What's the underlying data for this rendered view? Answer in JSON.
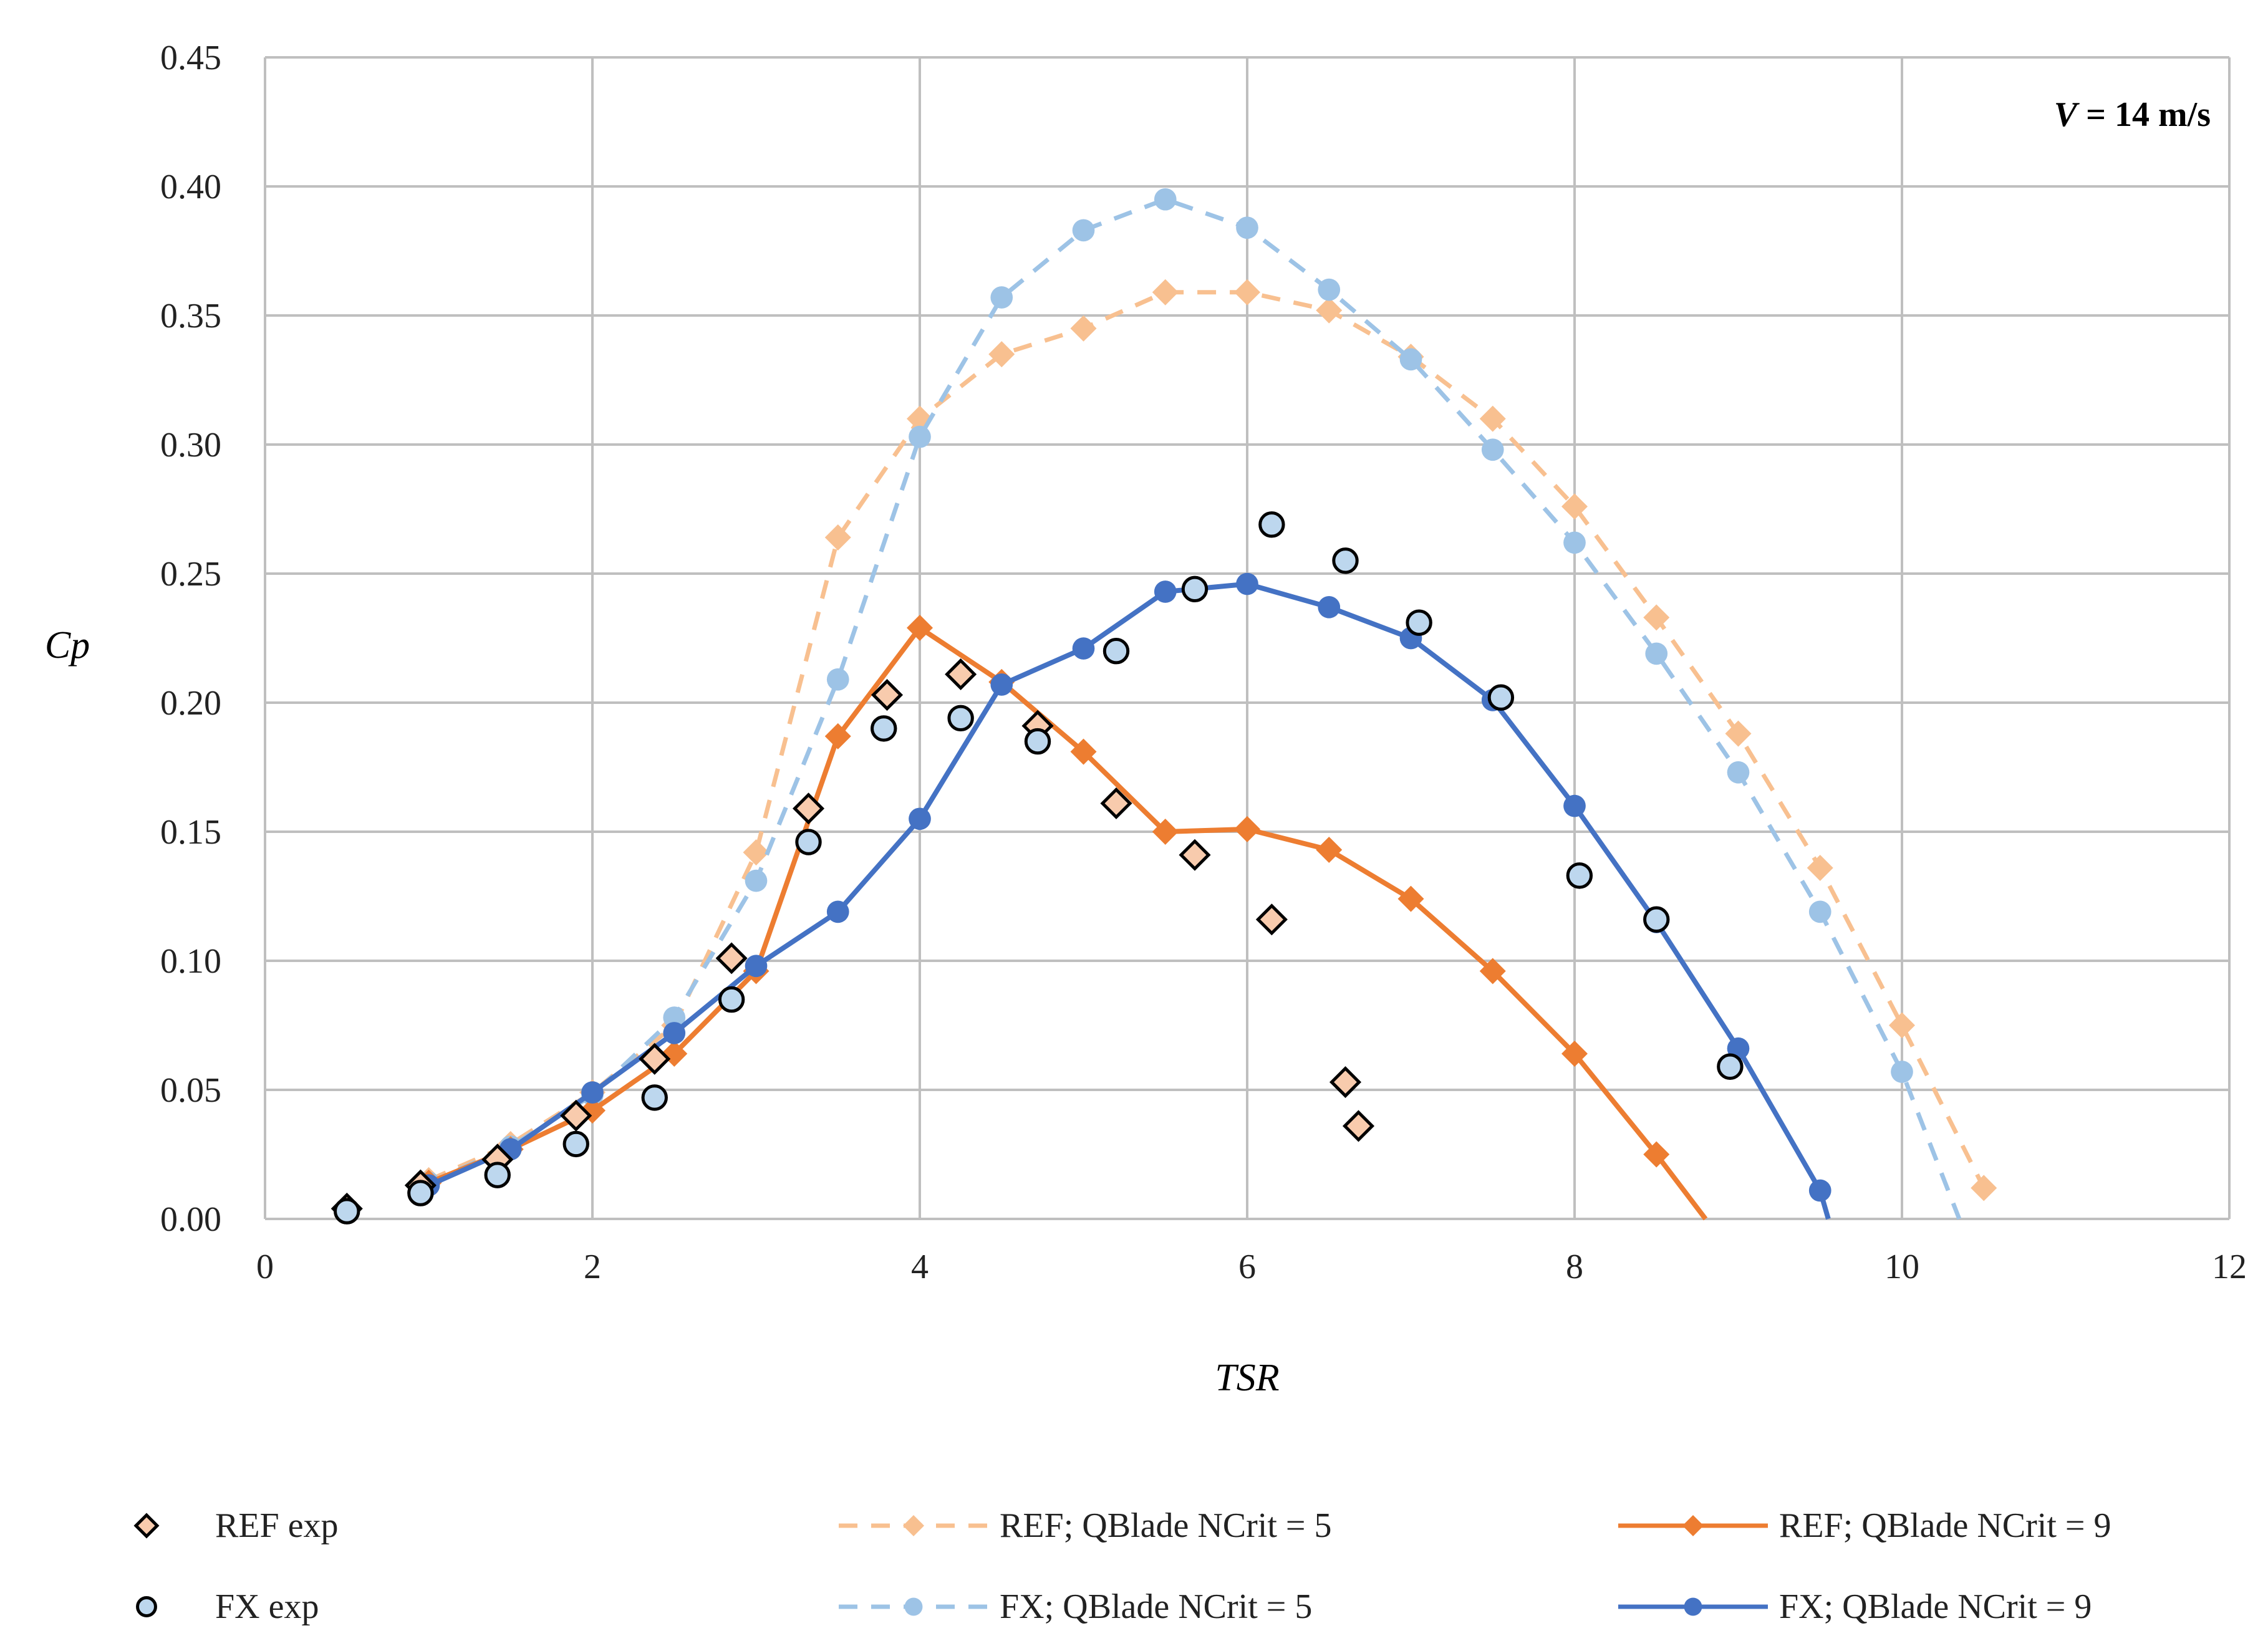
{
  "chart_data": {
    "type": "line",
    "annotation": "V = 14 m/s",
    "xlabel": "TSR",
    "ylabel": "Cp",
    "xlim": [
      0,
      12
    ],
    "ylim": [
      0,
      0.45
    ],
    "x_ticks": [
      0,
      2,
      4,
      6,
      8,
      10,
      12
    ],
    "y_ticks": [
      0,
      0.05,
      0.1,
      0.15,
      0.2,
      0.25,
      0.3,
      0.35,
      0.4,
      0.45
    ],
    "x_tick_labels": [
      "0",
      "2",
      "4",
      "6",
      "8",
      "10",
      "12"
    ],
    "y_tick_labels": [
      "0.00",
      "0.05",
      "0.10",
      "0.15",
      "0.20",
      "0.25",
      "0.30",
      "0.35",
      "0.40",
      "0.45"
    ],
    "grid": true,
    "legend_position": "bottom",
    "series": [
      {
        "id": "ref-exp",
        "name": "REF exp",
        "style": "marker",
        "marker": "diamond",
        "color": "#f8cbad",
        "points": [
          [
            0.5,
            0.004
          ],
          [
            0.95,
            0.013
          ],
          [
            1.42,
            0.023
          ],
          [
            1.9,
            0.04
          ],
          [
            2.38,
            0.062
          ],
          [
            2.85,
            0.101
          ],
          [
            3.32,
            0.159
          ],
          [
            3.8,
            0.203
          ],
          [
            4.25,
            0.211
          ],
          [
            4.72,
            0.191
          ],
          [
            5.2,
            0.161
          ],
          [
            5.68,
            0.141
          ],
          [
            6.15,
            0.116
          ],
          [
            6.6,
            0.053
          ],
          [
            6.68,
            0.036
          ]
        ]
      },
      {
        "id": "fx-exp",
        "name": "FX exp",
        "style": "marker",
        "marker": "circle",
        "color": "#bdd7ee",
        "points": [
          [
            0.5,
            0.003
          ],
          [
            0.95,
            0.01
          ],
          [
            1.42,
            0.017
          ],
          [
            1.9,
            0.029
          ],
          [
            2.38,
            0.047
          ],
          [
            2.85,
            0.085
          ],
          [
            3.32,
            0.146
          ],
          [
            3.78,
            0.19
          ],
          [
            4.25,
            0.194
          ],
          [
            4.72,
            0.185
          ],
          [
            5.2,
            0.22
          ],
          [
            5.68,
            0.244
          ],
          [
            6.15,
            0.269
          ],
          [
            6.6,
            0.255
          ],
          [
            7.05,
            0.231
          ],
          [
            7.55,
            0.202
          ],
          [
            8.03,
            0.133
          ],
          [
            8.5,
            0.116
          ],
          [
            8.95,
            0.059
          ]
        ]
      },
      {
        "id": "ref-nc5",
        "name": "REF; QBlade NCrit = 5",
        "style": "dashed",
        "marker": "diamond",
        "color": "#f8c090",
        "points": [
          [
            1,
            0.015
          ],
          [
            1.5,
            0.029
          ],
          [
            2,
            0.049
          ],
          [
            2.5,
            0.075
          ],
          [
            3,
            0.142
          ],
          [
            3.5,
            0.264
          ],
          [
            4,
            0.31
          ],
          [
            4.5,
            0.335
          ],
          [
            5,
            0.345
          ],
          [
            5.5,
            0.359
          ],
          [
            6,
            0.359
          ],
          [
            6.5,
            0.352
          ],
          [
            7,
            0.334
          ],
          [
            7.5,
            0.31
          ],
          [
            8,
            0.276
          ],
          [
            8.5,
            0.233
          ],
          [
            9,
            0.188
          ],
          [
            9.5,
            0.136
          ],
          [
            10,
            0.075
          ],
          [
            10.5,
            0.012
          ]
        ]
      },
      {
        "id": "fx-nc5",
        "name": "FX; QBlade NCrit = 5",
        "style": "dashed",
        "marker": "circle",
        "color": "#9dc3e6",
        "points": [
          [
            1,
            0.014
          ],
          [
            1.5,
            0.028
          ],
          [
            2,
            0.048
          ],
          [
            2.5,
            0.078
          ],
          [
            3,
            0.131
          ],
          [
            3.5,
            0.209
          ],
          [
            4,
            0.303
          ],
          [
            4.5,
            0.357
          ],
          [
            5,
            0.383
          ],
          [
            5.5,
            0.395
          ],
          [
            6,
            0.384
          ],
          [
            6.5,
            0.36
          ],
          [
            7,
            0.333
          ],
          [
            7.5,
            0.298
          ],
          [
            8,
            0.262
          ],
          [
            8.5,
            0.219
          ],
          [
            9,
            0.173
          ],
          [
            9.5,
            0.119
          ],
          [
            10,
            0.057
          ],
          [
            10.35,
            0
          ]
        ]
      },
      {
        "id": "ref-nc9",
        "name": "REF; QBlade NCrit = 9",
        "style": "solid",
        "marker": "diamond",
        "color": "#ed7d31",
        "points": [
          [
            1,
            0.014
          ],
          [
            1.5,
            0.027
          ],
          [
            2,
            0.042
          ],
          [
            2.5,
            0.064
          ],
          [
            3,
            0.096
          ],
          [
            3.5,
            0.187
          ],
          [
            4,
            0.229
          ],
          [
            4.5,
            0.208
          ],
          [
            5,
            0.181
          ],
          [
            5.5,
            0.15
          ],
          [
            6,
            0.151
          ],
          [
            6.5,
            0.143
          ],
          [
            7,
            0.124
          ],
          [
            7.5,
            0.096
          ],
          [
            8,
            0.064
          ],
          [
            8.5,
            0.025
          ],
          [
            8.8,
            0
          ]
        ]
      },
      {
        "id": "fx-nc9",
        "name": "FX; QBlade NCrit = 9",
        "style": "solid",
        "marker": "circle",
        "color": "#4472c4",
        "points": [
          [
            1,
            0.013
          ],
          [
            1.5,
            0.027
          ],
          [
            2,
            0.049
          ],
          [
            2.5,
            0.072
          ],
          [
            3,
            0.098
          ],
          [
            3.5,
            0.119
          ],
          [
            4,
            0.155
          ],
          [
            4.5,
            0.207
          ],
          [
            5,
            0.221
          ],
          [
            5.5,
            0.243
          ],
          [
            6,
            0.246
          ],
          [
            6.5,
            0.237
          ],
          [
            7,
            0.225
          ],
          [
            7.5,
            0.201
          ],
          [
            8,
            0.16
          ],
          [
            8.5,
            0.115
          ],
          [
            9,
            0.066
          ],
          [
            9.5,
            0.011
          ],
          [
            9.55,
            0
          ]
        ]
      }
    ],
    "legend": {
      "items": [
        {
          "series": "ref-exp",
          "label": "REF exp"
        },
        {
          "series": "ref-nc5",
          "label": "REF; QBlade NCrit = 5"
        },
        {
          "series": "ref-nc9",
          "label": "REF; QBlade NCrit = 9"
        },
        {
          "series": "fx-exp",
          "label": "FX exp"
        },
        {
          "series": "fx-nc5",
          "label": "FX; QBlade NCrit = 5"
        },
        {
          "series": "fx-nc9",
          "label": "FX; QBlade NCrit = 9"
        }
      ]
    }
  }
}
